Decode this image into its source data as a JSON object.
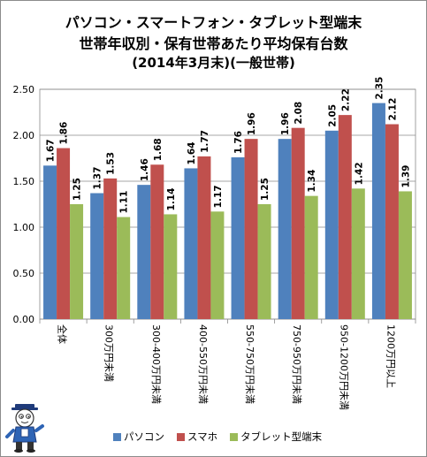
{
  "title": {
    "line1": "パソコン・スマートフォン・タブレット型端末",
    "line2": "世帯年収別・保有世帯あたり平均保有台数",
    "line3": "(2014年3月末)(一般世帯)"
  },
  "chart_data": {
    "type": "bar",
    "categories": [
      "全体",
      "300万円未満",
      "300-400万円未満",
      "400-550万円未満",
      "550-750万円未満",
      "750-950万円未満",
      "950-1200万円未満",
      "1200万円以上"
    ],
    "series": [
      {
        "name": "パソコン",
        "color": "#4F81BD",
        "values": [
          1.67,
          1.37,
          1.46,
          1.64,
          1.76,
          1.96,
          2.05,
          2.35
        ]
      },
      {
        "name": "スマホ",
        "color": "#C0504D",
        "values": [
          1.86,
          1.53,
          1.68,
          1.77,
          1.96,
          2.08,
          2.22,
          2.12
        ]
      },
      {
        "name": "タブレット型端末",
        "color": "#9BBB59",
        "values": [
          1.25,
          1.11,
          1.14,
          1.17,
          1.25,
          1.34,
          1.42,
          1.39
        ]
      }
    ],
    "yticks": [
      "0.00",
      "0.50",
      "1.00",
      "1.50",
      "2.00",
      "2.50"
    ],
    "ylim": [
      0,
      2.5
    ],
    "grid": true,
    "legend_position": "bottom"
  }
}
